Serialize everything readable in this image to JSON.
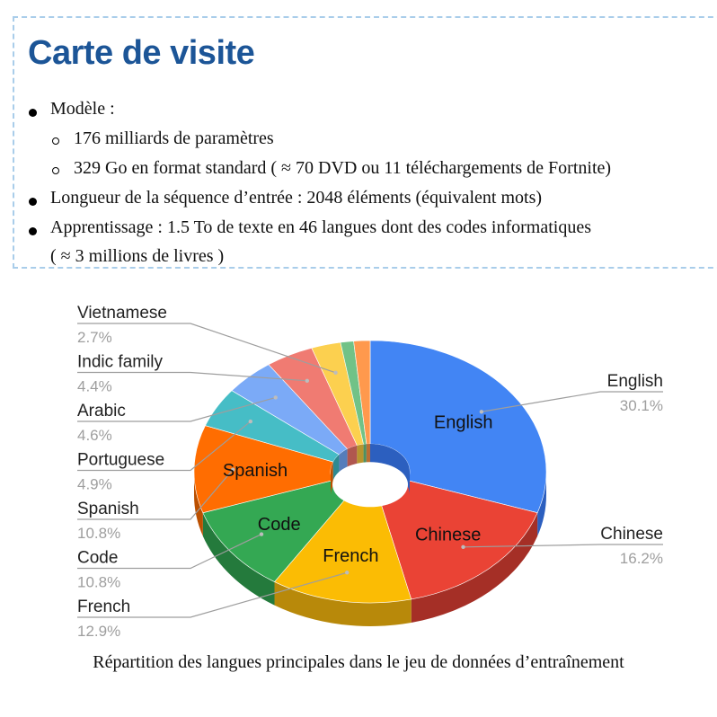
{
  "card": {
    "title": "Carte de visite",
    "items": [
      {
        "text": "Modèle :"
      },
      {
        "text": "176 milliards de paramètres"
      },
      {
        "text": "329 Go en format standard ( ≈ 70 DVD ou 11 téléchargements de Fortnite)"
      },
      {
        "text": "Longueur de la séquence d’entrée : 2048 éléments (équivalent mots)"
      },
      {
        "text": "Apprentissage : 1.5 To de texte en 46 langues dont des codes informatiques"
      },
      {
        "text": "( ≈ 3 millions de livres )"
      }
    ]
  },
  "chart_data": {
    "type": "pie",
    "style": "3d-donut",
    "title": "",
    "caption": "Répartition des langues principales dans le jeu de données d’entraînement",
    "slices": [
      {
        "label": "English",
        "value": 30.1,
        "pct": "30.1%",
        "color": "#4285f4",
        "side_color": "#2c5fbf"
      },
      {
        "label": "Chinese",
        "value": 16.2,
        "pct": "16.2%",
        "color": "#ea4335",
        "side_color": "#a52f26"
      },
      {
        "label": "French",
        "value": 12.9,
        "pct": "12.9%",
        "color": "#fbbc04",
        "side_color": "#b8890a"
      },
      {
        "label": "Code",
        "value": 10.8,
        "pct": "10.8%",
        "color": "#34a853",
        "side_color": "#247a3c"
      },
      {
        "label": "Spanish",
        "value": 10.8,
        "pct": "10.8%",
        "color": "#ff6d01",
        "side_color": "#bb5000"
      },
      {
        "label": "Portuguese",
        "value": 4.9,
        "pct": "4.9%",
        "color": "#46bdc6",
        "side_color": "#2e8a91"
      },
      {
        "label": "Arabic",
        "value": 4.6,
        "pct": "4.6%",
        "color": "#7baaf7",
        "side_color": "#557dbb"
      },
      {
        "label": "Indic family",
        "value": 4.4,
        "pct": "4.4%",
        "color": "#f07b72",
        "side_color": "#b0574f"
      },
      {
        "label": "Vietnamese",
        "value": 2.7,
        "pct": "2.7%",
        "color": "#fcd04f",
        "side_color": "#b8952e"
      },
      {
        "label": "",
        "value": 1.2,
        "color": "#71c287",
        "side_color": "#4f9061"
      },
      {
        "label": "",
        "value": 1.5,
        "color": "#ff994d",
        "side_color": "#bb6d33"
      }
    ],
    "inside_labels": [
      "English",
      "Chinese",
      "French",
      "Code",
      "Spanish"
    ],
    "callout_labels": [
      "Vietnamese",
      "Indic family",
      "Arabic",
      "Portuguese",
      "Spanish",
      "Code",
      "French",
      "English",
      "Chinese"
    ]
  }
}
